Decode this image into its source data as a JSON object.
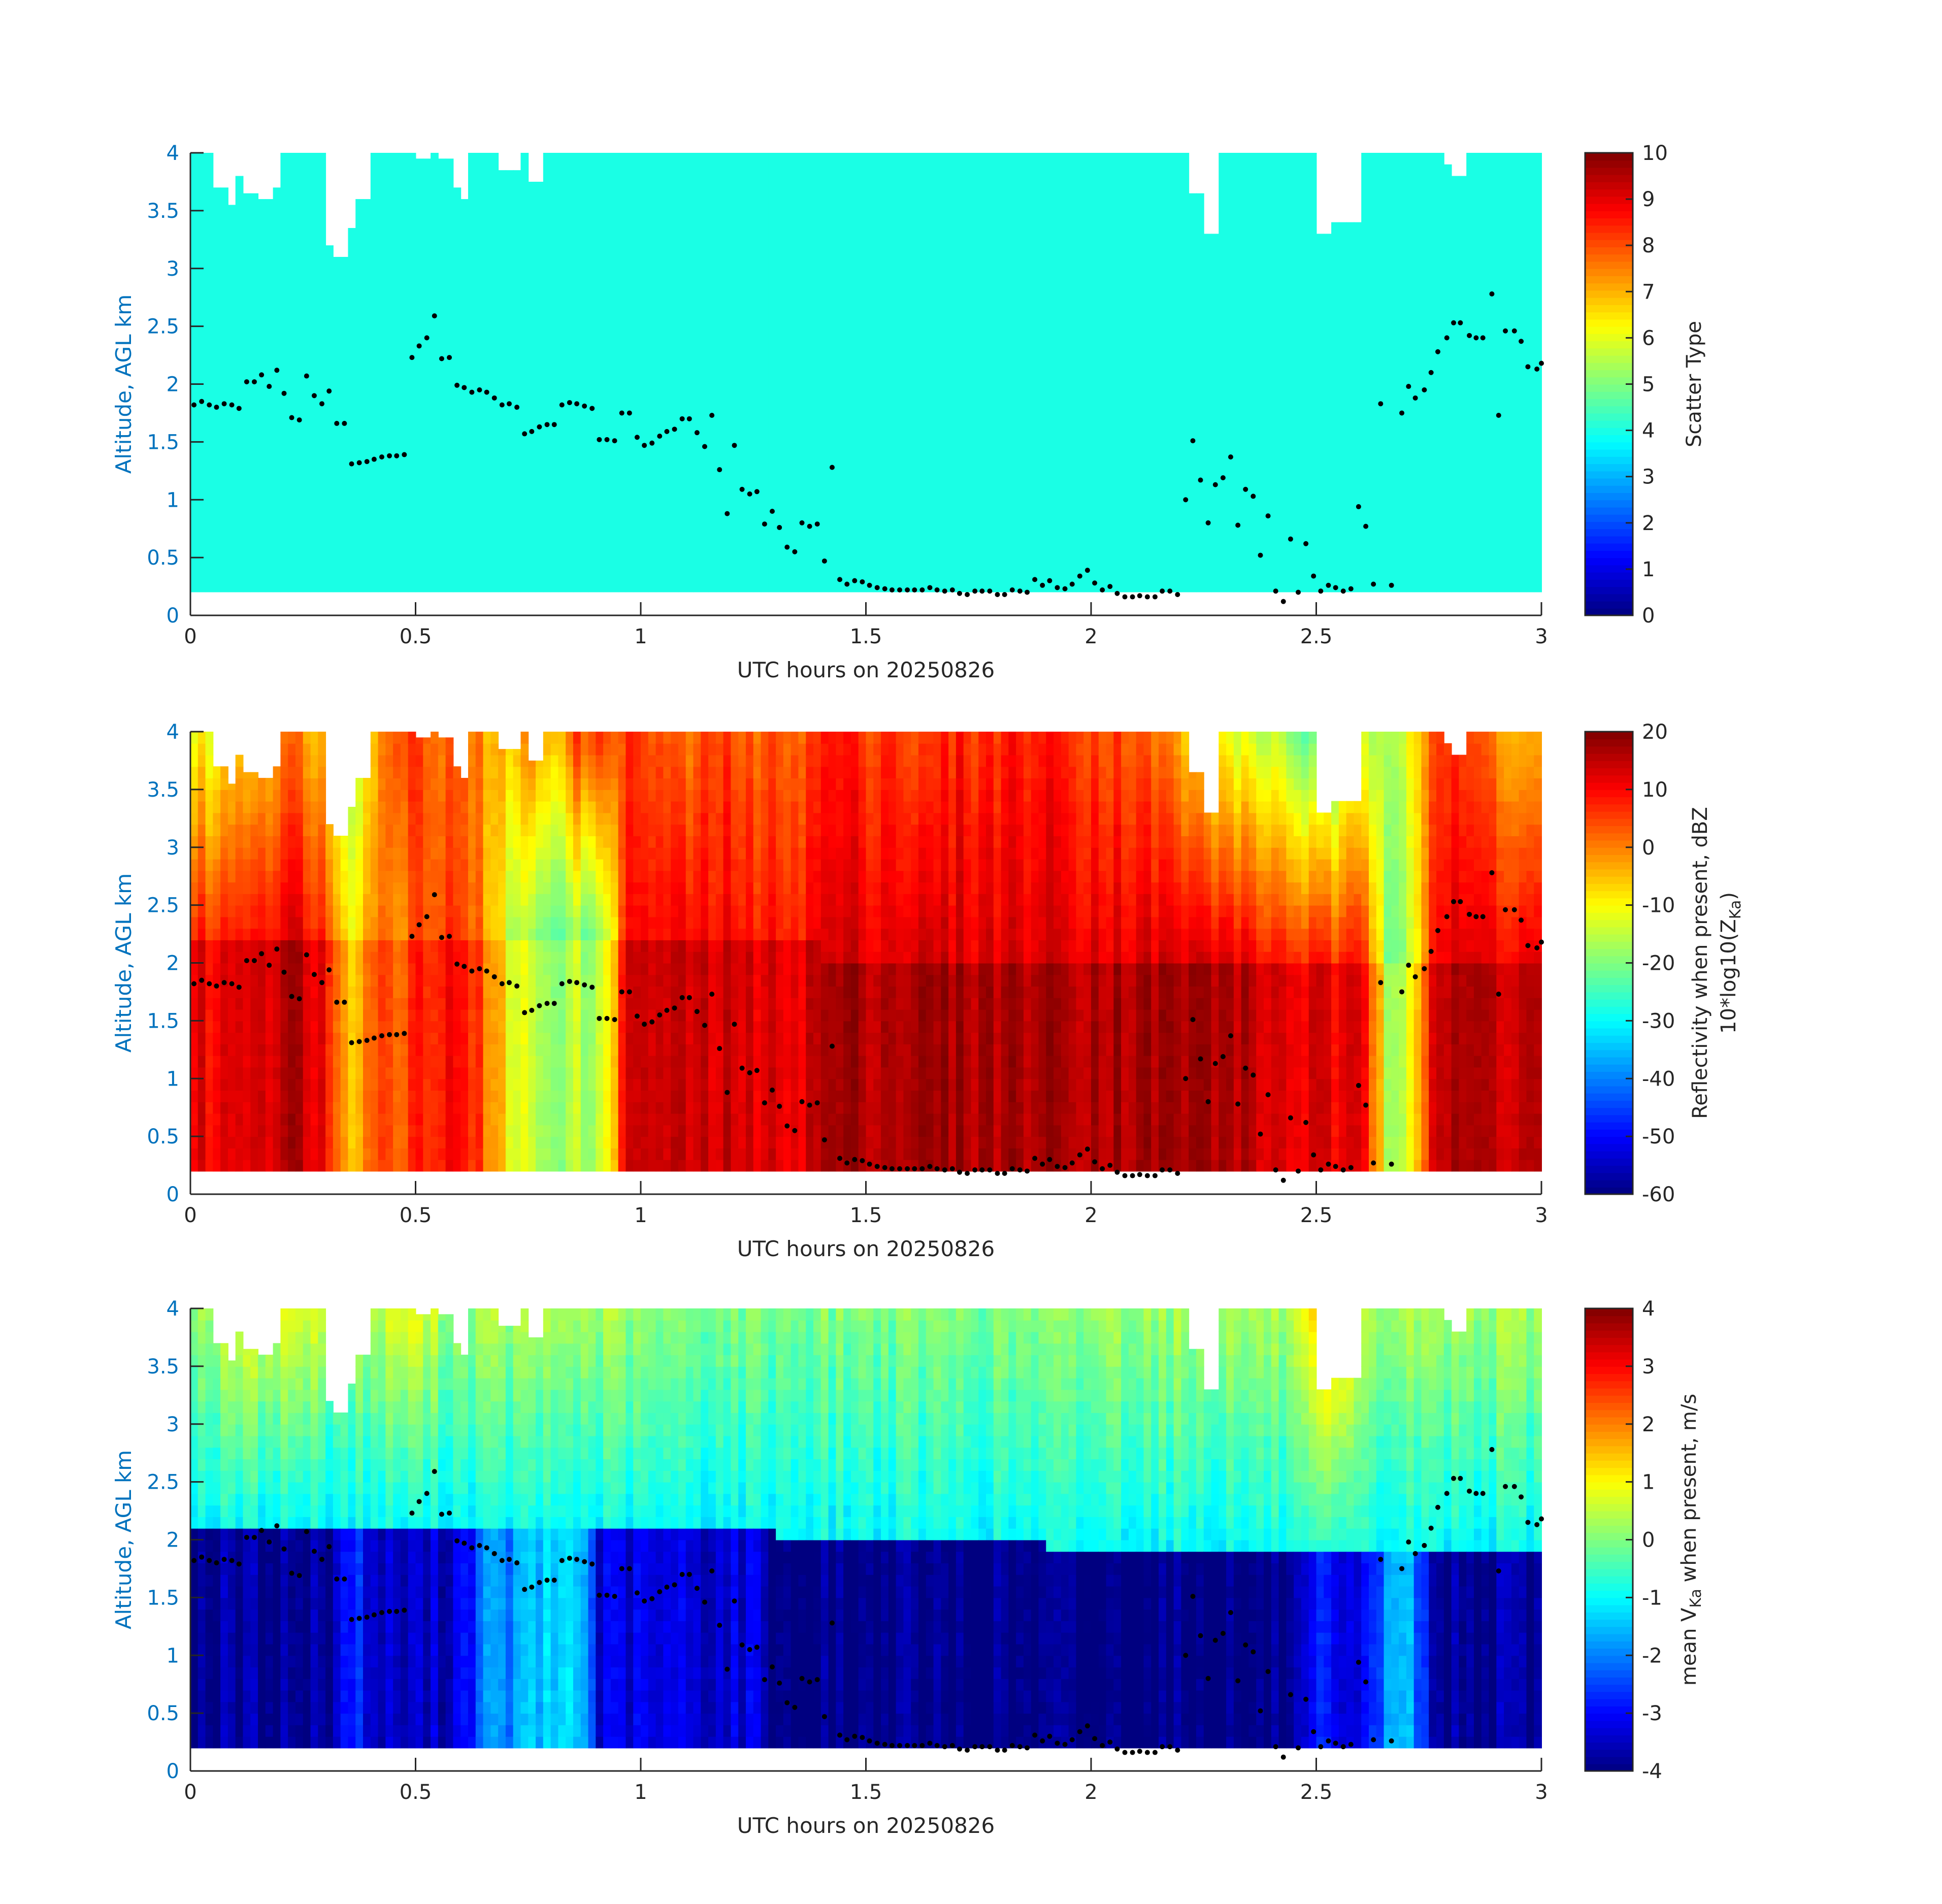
{
  "chart_data": [
    {
      "type": "heatmap",
      "xlabel": "UTC hours on 20250826",
      "ylabel": "Altitude, AGL km",
      "xlim": [
        0,
        3
      ],
      "ylim": [
        0,
        4
      ],
      "xticks": [
        "0",
        "0.5",
        "1",
        "1.5",
        "2",
        "2.5",
        "3"
      ],
      "yticks": [
        "0",
        "0.5",
        "1",
        "1.5",
        "2",
        "2.5",
        "3",
        "3.5",
        "4"
      ],
      "colorbar": {
        "label": "Scatter Type",
        "clim": [
          0,
          10
        ],
        "ticks": [
          "0",
          "1",
          "2",
          "3",
          "4",
          "5",
          "6",
          "7",
          "8",
          "9",
          "10"
        ]
      },
      "field": {
        "value": 4,
        "base_km": 0.2,
        "echo_top_step_hours": 0.025,
        "echo_top_km": [
          4,
          4,
          3.7,
          3.55,
          3.8,
          3.65,
          3.6,
          3.7,
          4,
          4,
          4,
          4,
          3.2,
          3.1,
          3.35,
          3.6,
          4,
          4,
          4,
          4,
          3.95,
          4,
          3.95,
          3.7,
          3.6,
          4,
          4,
          3.85,
          3.85,
          4,
          3.75,
          4,
          4,
          4,
          4,
          4,
          4,
          4,
          4,
          4,
          4,
          4,
          4,
          4,
          4,
          4,
          4,
          4,
          4,
          4,
          4,
          4,
          4,
          4,
          4,
          4,
          4,
          4,
          4,
          4,
          4,
          4,
          4,
          4,
          4,
          4,
          4,
          4,
          4,
          4,
          4,
          4,
          4,
          4,
          4,
          4,
          4,
          4,
          4,
          4,
          4,
          4,
          4,
          4,
          4,
          4,
          4,
          4,
          4,
          3.65,
          3.3,
          4,
          4,
          4,
          4,
          4,
          4,
          4,
          4,
          4,
          3.3,
          3.4,
          3.4,
          3.4,
          4,
          4,
          4,
          4,
          4,
          4,
          4,
          3.9,
          3.8,
          4,
          4,
          4,
          4,
          4,
          4,
          4
        ]
      },
      "overlay_points": [
        [
          0.008,
          1.82
        ],
        [
          0.025,
          1.85
        ],
        [
          0.042,
          1.82
        ],
        [
          0.058,
          1.8
        ],
        [
          0.075,
          1.83
        ],
        [
          0.092,
          1.82
        ],
        [
          0.108,
          1.79
        ],
        [
          0.125,
          2.02
        ],
        [
          0.142,
          2.02
        ],
        [
          0.158,
          2.08
        ],
        [
          0.175,
          1.98
        ],
        [
          0.192,
          2.12
        ],
        [
          0.208,
          1.92
        ],
        [
          0.225,
          1.71
        ],
        [
          0.242,
          1.69
        ],
        [
          0.258,
          2.07
        ],
        [
          0.275,
          1.9
        ],
        [
          0.292,
          1.83
        ],
        [
          0.308,
          1.94
        ],
        [
          0.325,
          1.66
        ],
        [
          0.342,
          1.66
        ],
        [
          0.358,
          1.31
        ],
        [
          0.375,
          1.32
        ],
        [
          0.392,
          1.33
        ],
        [
          0.408,
          1.35
        ],
        [
          0.425,
          1.37
        ],
        [
          0.442,
          1.38
        ],
        [
          0.458,
          1.38
        ],
        [
          0.475,
          1.39
        ],
        [
          0.492,
          2.23
        ],
        [
          0.508,
          2.33
        ],
        [
          0.525,
          2.4
        ],
        [
          0.542,
          2.59
        ],
        [
          0.558,
          2.22
        ],
        [
          0.575,
          2.23
        ],
        [
          0.592,
          1.99
        ],
        [
          0.608,
          1.97
        ],
        [
          0.625,
          1.93
        ],
        [
          0.642,
          1.95
        ],
        [
          0.658,
          1.93
        ],
        [
          0.675,
          1.88
        ],
        [
          0.692,
          1.82
        ],
        [
          0.708,
          1.83
        ],
        [
          0.725,
          1.8
        ],
        [
          0.742,
          1.57
        ],
        [
          0.758,
          1.59
        ],
        [
          0.775,
          1.63
        ],
        [
          0.792,
          1.65
        ],
        [
          0.808,
          1.65
        ],
        [
          0.825,
          1.82
        ],
        [
          0.842,
          1.84
        ],
        [
          0.858,
          1.83
        ],
        [
          0.875,
          1.81
        ],
        [
          0.892,
          1.79
        ],
        [
          0.908,
          1.52
        ],
        [
          0.925,
          1.52
        ],
        [
          0.942,
          1.51
        ],
        [
          0.958,
          1.75
        ],
        [
          0.975,
          1.75
        ],
        [
          0.992,
          1.54
        ],
        [
          1.008,
          1.47
        ],
        [
          1.025,
          1.49
        ],
        [
          1.042,
          1.55
        ],
        [
          1.058,
          1.59
        ],
        [
          1.075,
          1.61
        ],
        [
          1.092,
          1.7
        ],
        [
          1.108,
          1.7
        ],
        [
          1.125,
          1.58
        ],
        [
          1.142,
          1.46
        ],
        [
          1.158,
          1.73
        ],
        [
          1.175,
          1.26
        ],
        [
          1.192,
          0.88
        ],
        [
          1.208,
          1.47
        ],
        [
          1.225,
          1.09
        ],
        [
          1.242,
          1.05
        ],
        [
          1.258,
          1.07
        ],
        [
          1.275,
          0.79
        ],
        [
          1.292,
          0.9
        ],
        [
          1.308,
          0.76
        ],
        [
          1.325,
          0.59
        ],
        [
          1.342,
          0.55
        ],
        [
          1.358,
          0.8
        ],
        [
          1.375,
          0.77
        ],
        [
          1.392,
          0.79
        ],
        [
          1.408,
          0.47
        ],
        [
          1.425,
          1.28
        ],
        [
          1.442,
          0.31
        ],
        [
          1.458,
          0.27
        ],
        [
          1.475,
          0.3
        ],
        [
          1.492,
          0.29
        ],
        [
          1.508,
          0.26
        ],
        [
          1.525,
          0.24
        ],
        [
          1.542,
          0.23
        ],
        [
          1.558,
          0.22
        ],
        [
          1.575,
          0.22
        ],
        [
          1.592,
          0.22
        ],
        [
          1.608,
          0.22
        ],
        [
          1.625,
          0.22
        ],
        [
          1.642,
          0.24
        ],
        [
          1.658,
          0.22
        ],
        [
          1.675,
          0.21
        ],
        [
          1.692,
          0.22
        ],
        [
          1.708,
          0.19
        ],
        [
          1.725,
          0.18
        ],
        [
          1.742,
          0.21
        ],
        [
          1.758,
          0.21
        ],
        [
          1.775,
          0.21
        ],
        [
          1.792,
          0.18
        ],
        [
          1.808,
          0.18
        ],
        [
          1.825,
          0.22
        ],
        [
          1.842,
          0.21
        ],
        [
          1.858,
          0.2
        ],
        [
          1.875,
          0.31
        ],
        [
          1.892,
          0.26
        ],
        [
          1.908,
          0.3
        ],
        [
          1.925,
          0.24
        ],
        [
          1.942,
          0.23
        ],
        [
          1.958,
          0.27
        ],
        [
          1.975,
          0.34
        ],
        [
          1.992,
          0.39
        ],
        [
          2.008,
          0.28
        ],
        [
          2.025,
          0.22
        ],
        [
          2.042,
          0.25
        ],
        [
          2.058,
          0.19
        ],
        [
          2.075,
          0.16
        ],
        [
          2.092,
          0.16
        ],
        [
          2.108,
          0.17
        ],
        [
          2.125,
          0.16
        ],
        [
          2.142,
          0.16
        ],
        [
          2.158,
          0.21
        ],
        [
          2.175,
          0.21
        ],
        [
          2.192,
          0.18
        ],
        [
          2.21,
          1.0
        ],
        [
          2.226,
          1.51
        ],
        [
          2.243,
          1.17
        ],
        [
          2.26,
          0.8
        ],
        [
          2.276,
          1.13
        ],
        [
          2.293,
          1.19
        ],
        [
          2.31,
          1.37
        ],
        [
          2.326,
          0.78
        ],
        [
          2.343,
          1.09
        ],
        [
          2.36,
          1.03
        ],
        [
          2.376,
          0.52
        ],
        [
          2.393,
          0.86
        ],
        [
          2.41,
          0.21
        ],
        [
          2.427,
          0.12
        ],
        [
          2.443,
          0.66
        ],
        [
          2.46,
          0.2
        ],
        [
          2.477,
          0.62
        ],
        [
          2.494,
          0.34
        ],
        [
          2.51,
          0.21
        ],
        [
          2.527,
          0.26
        ],
        [
          2.543,
          0.24
        ],
        [
          2.56,
          0.21
        ],
        [
          2.577,
          0.23
        ],
        [
          2.594,
          0.94
        ],
        [
          2.61,
          0.77
        ],
        [
          2.627,
          0.27
        ],
        [
          2.643,
          1.83
        ],
        [
          2.667,
          0.26
        ],
        [
          2.69,
          1.75
        ],
        [
          2.705,
          1.98
        ],
        [
          2.72,
          1.88
        ],
        [
          2.74,
          1.95
        ],
        [
          2.755,
          2.1
        ],
        [
          2.77,
          2.28
        ],
        [
          2.79,
          2.4
        ],
        [
          2.805,
          2.53
        ],
        [
          2.82,
          2.53
        ],
        [
          2.84,
          2.42
        ],
        [
          2.855,
          2.4
        ],
        [
          2.87,
          2.4
        ],
        [
          2.89,
          2.78
        ],
        [
          2.905,
          1.73
        ],
        [
          2.92,
          2.46
        ],
        [
          2.94,
          2.46
        ],
        [
          2.955,
          2.37
        ],
        [
          2.97,
          2.15
        ],
        [
          2.99,
          2.13
        ],
        [
          3.0,
          2.18
        ]
      ]
    },
    {
      "type": "heatmap",
      "xlabel": "UTC hours on 20250826",
      "ylabel": "Altitude, AGL km",
      "xlim": [
        0,
        3
      ],
      "ylim": [
        0,
        4
      ],
      "xticks": [
        "0",
        "0.5",
        "1",
        "1.5",
        "2",
        "2.5",
        "3"
      ],
      "yticks": [
        "0",
        "0.5",
        "1",
        "1.5",
        "2",
        "2.5",
        "3",
        "3.5",
        "4"
      ],
      "colorbar": {
        "label_line1": "Reflectivity when present, dBZ",
        "label_line2": "10*log10(Z",
        "label_sub": "Ka",
        "label_end": ")",
        "clim": [
          -60,
          20
        ],
        "ticks": [
          "-60",
          "-50",
          "-40",
          "-30",
          "-20",
          "-10",
          "0",
          "10",
          "20"
        ]
      },
      "field": {
        "units": "dBZ",
        "column_step_hours": 0.05,
        "low_layer_dbz": [
          12,
          10,
          14,
          14,
          16,
          16,
          8,
          -5,
          5,
          2,
          10,
          8,
          12,
          0,
          -10,
          -15,
          -18,
          -15,
          -20,
          10,
          15,
          13,
          14,
          12,
          15,
          10,
          14,
          12,
          17,
          17,
          17,
          17,
          17,
          17,
          17,
          17,
          17,
          17,
          17,
          17,
          17,
          17,
          17,
          17,
          17,
          17,
          17,
          14,
          13,
          12,
          12,
          10,
          12,
          -15,
          -12,
          14,
          15,
          16,
          15,
          15
        ],
        "top_dbz": [
          -10,
          -12,
          -5,
          -5,
          0,
          0,
          -10,
          -15,
          -5,
          5,
          8,
          0,
          5,
          -5,
          -5,
          0,
          -5,
          5,
          5,
          5,
          5,
          3,
          0,
          5,
          5,
          0,
          5,
          3,
          8,
          8,
          6,
          8,
          3,
          5,
          8,
          6,
          8,
          8,
          8,
          8,
          5,
          5,
          3,
          0,
          -5,
          -10,
          -12,
          -15,
          -15,
          -20,
          -25,
          -20,
          -15,
          -15,
          -10,
          5,
          5,
          3,
          0,
          -5
        ]
      }
    },
    {
      "type": "heatmap",
      "xlabel": "UTC hours on 20250826",
      "ylabel": "Altitude, AGL km",
      "xlim": [
        0,
        3
      ],
      "ylim": [
        0,
        4
      ],
      "xticks": [
        "0",
        "0.5",
        "1",
        "1.5",
        "2",
        "2.5",
        "3"
      ],
      "yticks": [
        "0",
        "0.5",
        "1",
        "1.5",
        "2",
        "2.5",
        "3",
        "3.5",
        "4"
      ],
      "colorbar": {
        "label_pre": "mean V",
        "label_sub": "Ka",
        "label_post": " when present, m/s",
        "clim": [
          -4,
          4
        ],
        "ticks": [
          "-4",
          "-3",
          "-2",
          "-1",
          "0",
          "1",
          "2",
          "3",
          "4"
        ]
      },
      "field": {
        "units": "m/s",
        "column_step_hours": 0.05,
        "low_layer_ms": [
          -3.8,
          -3.8,
          -3.8,
          -3.8,
          -3.8,
          -3.8,
          -3.8,
          -2.5,
          -3.5,
          -3.5,
          -3.5,
          -3.5,
          -3,
          -2,
          -2,
          -1.5,
          -1.5,
          -1,
          -3.3,
          -3.3,
          -3.3,
          -3.3,
          -3.3,
          -3.3,
          -3.3,
          -3.3,
          -4,
          -4,
          -4,
          -4,
          -4,
          -4,
          -4,
          -4,
          -4,
          -4,
          -4,
          -4,
          -4,
          -4,
          -4,
          -4,
          -4,
          -4,
          -4,
          -4,
          -4,
          -4,
          -4,
          -4,
          -3,
          -3.5,
          -3.5,
          -1.5,
          -1.5,
          -3.8,
          -3.8,
          -3.8,
          -3.8,
          -3.8
        ],
        "top_ms": [
          0.3,
          0.3,
          0.8,
          0.8,
          0.8,
          0.8,
          0.3,
          0.3,
          0.3,
          0.8,
          0.8,
          0.3,
          0.3,
          0.3,
          0.3,
          0.3,
          0.3,
          0.3,
          0.3,
          0.3,
          0,
          0,
          0,
          0,
          0,
          0,
          0,
          0,
          0,
          0,
          0,
          0,
          0,
          0,
          0,
          0,
          0,
          0,
          0,
          0,
          0.3,
          0.3,
          0.3,
          0.3,
          0.3,
          0.3,
          0.3,
          0.3,
          0.3,
          0.3,
          1.5,
          1.5,
          0.3,
          0.3,
          0.3,
          0.3,
          0.3,
          0.3,
          0.3,
          0.3
        ]
      }
    }
  ]
}
